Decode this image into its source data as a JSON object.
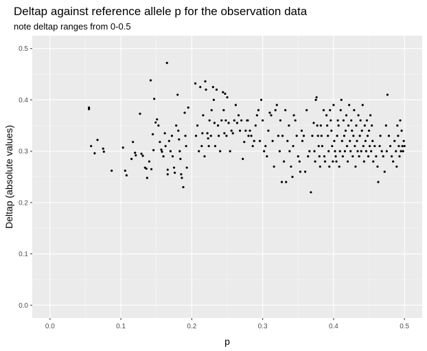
{
  "chart_data": {
    "type": "scatter",
    "title": "Deltap against reference allele p for the observation data",
    "subtitle": "note deltap ranges from 0-0.5",
    "xlabel": "p",
    "ylabel": "Deltap (absolute values)",
    "xlim": [
      -0.025,
      0.525
    ],
    "ylim": [
      -0.025,
      0.525
    ],
    "xticks": [
      "0.0",
      "0.1",
      "0.2",
      "0.3",
      "0.4",
      "0.5"
    ],
    "yticks": [
      "0.0",
      "0.1",
      "0.2",
      "0.3",
      "0.4",
      "0.5"
    ],
    "grid": true,
    "legend": "none",
    "colors": {
      "panel": "#ebebeb",
      "grid_major": "#ffffff",
      "grid_minor": "#f5f5f5",
      "point": "#000000"
    },
    "points": [
      [
        0.055,
        0.385
      ],
      [
        0.055,
        0.382
      ],
      [
        0.058,
        0.31
      ],
      [
        0.063,
        0.296
      ],
      [
        0.067,
        0.322
      ],
      [
        0.075,
        0.305
      ],
      [
        0.076,
        0.299
      ],
      [
        0.087,
        0.262
      ],
      [
        0.103,
        0.307
      ],
      [
        0.106,
        0.262
      ],
      [
        0.108,
        0.253
      ],
      [
        0.115,
        0.285
      ],
      [
        0.117,
        0.318
      ],
      [
        0.12,
        0.297
      ],
      [
        0.121,
        0.292
      ],
      [
        0.127,
        0.373
      ],
      [
        0.129,
        0.295
      ],
      [
        0.131,
        0.291
      ],
      [
        0.134,
        0.268
      ],
      [
        0.136,
        0.266
      ],
      [
        0.137,
        0.248
      ],
      [
        0.14,
        0.28
      ],
      [
        0.142,
        0.438
      ],
      [
        0.143,
        0.265
      ],
      [
        0.145,
        0.333
      ],
      [
        0.146,
        0.302
      ],
      [
        0.147,
        0.402
      ],
      [
        0.149,
        0.356
      ],
      [
        0.151,
        0.362
      ],
      [
        0.153,
        0.35
      ],
      [
        0.155,
        0.318
      ],
      [
        0.157,
        0.303
      ],
      [
        0.158,
        0.299
      ],
      [
        0.16,
        0.29
      ],
      [
        0.162,
        0.335
      ],
      [
        0.163,
        0.31
      ],
      [
        0.165,
        0.472
      ],
      [
        0.166,
        0.264
      ],
      [
        0.166,
        0.255
      ],
      [
        0.168,
        0.32
      ],
      [
        0.17,
        0.3
      ],
      [
        0.172,
        0.33
      ],
      [
        0.173,
        0.29
      ],
      [
        0.175,
        0.268
      ],
      [
        0.176,
        0.258
      ],
      [
        0.178,
        0.35
      ],
      [
        0.18,
        0.41
      ],
      [
        0.181,
        0.34
      ],
      [
        0.182,
        0.323
      ],
      [
        0.183,
        0.3
      ],
      [
        0.184,
        0.285
      ],
      [
        0.185,
        0.255
      ],
      [
        0.186,
        0.248
      ],
      [
        0.188,
        0.23
      ],
      [
        0.19,
        0.375
      ],
      [
        0.191,
        0.33
      ],
      [
        0.192,
        0.31
      ],
      [
        0.193,
        0.268
      ],
      [
        0.195,
        0.385
      ],
      [
        0.205,
        0.432
      ],
      [
        0.206,
        0.33
      ],
      [
        0.208,
        0.35
      ],
      [
        0.21,
        0.3
      ],
      [
        0.212,
        0.425
      ],
      [
        0.214,
        0.31
      ],
      [
        0.215,
        0.335
      ],
      [
        0.216,
        0.37
      ],
      [
        0.218,
        0.29
      ],
      [
        0.219,
        0.436
      ],
      [
        0.22,
        0.42
      ],
      [
        0.222,
        0.335
      ],
      [
        0.223,
        0.325
      ],
      [
        0.224,
        0.31
      ],
      [
        0.225,
        0.36
      ],
      [
        0.227,
        0.33
      ],
      [
        0.228,
        0.38
      ],
      [
        0.23,
        0.425
      ],
      [
        0.231,
        0.4
      ],
      [
        0.232,
        0.355
      ],
      [
        0.233,
        0.31
      ],
      [
        0.235,
        0.42
      ],
      [
        0.237,
        0.35
      ],
      [
        0.238,
        0.33
      ],
      [
        0.24,
        0.3
      ],
      [
        0.242,
        0.36
      ],
      [
        0.244,
        0.415
      ],
      [
        0.245,
        0.38
      ],
      [
        0.246,
        0.335
      ],
      [
        0.247,
        0.412
      ],
      [
        0.248,
        0.36
      ],
      [
        0.249,
        0.33
      ],
      [
        0.25,
        0.405
      ],
      [
        0.252,
        0.355
      ],
      [
        0.254,
        0.3
      ],
      [
        0.256,
        0.34
      ],
      [
        0.258,
        0.335
      ],
      [
        0.26,
        0.36
      ],
      [
        0.262,
        0.39
      ],
      [
        0.264,
        0.355
      ],
      [
        0.266,
        0.37
      ],
      [
        0.268,
        0.34
      ],
      [
        0.27,
        0.36
      ],
      [
        0.272,
        0.285
      ],
      [
        0.274,
        0.318
      ],
      [
        0.276,
        0.34
      ],
      [
        0.278,
        0.36
      ],
      [
        0.279,
        0.36
      ],
      [
        0.28,
        0.33
      ],
      [
        0.282,
        0.34
      ],
      [
        0.284,
        0.33
      ],
      [
        0.286,
        0.31
      ],
      [
        0.288,
        0.32
      ],
      [
        0.29,
        0.35
      ],
      [
        0.292,
        0.37
      ],
      [
        0.294,
        0.38
      ],
      [
        0.296,
        0.32
      ],
      [
        0.298,
        0.4
      ],
      [
        0.3,
        0.36
      ],
      [
        0.302,
        0.3
      ],
      [
        0.304,
        0.31
      ],
      [
        0.306,
        0.29
      ],
      [
        0.308,
        0.34
      ],
      [
        0.31,
        0.375
      ],
      [
        0.312,
        0.37
      ],
      [
        0.314,
        0.32
      ],
      [
        0.316,
        0.27
      ],
      [
        0.318,
        0.38
      ],
      [
        0.32,
        0.39
      ],
      [
        0.322,
        0.33
      ],
      [
        0.324,
        0.3
      ],
      [
        0.325,
        0.36
      ],
      [
        0.327,
        0.24
      ],
      [
        0.328,
        0.33
      ],
      [
        0.33,
        0.28
      ],
      [
        0.332,
        0.38
      ],
      [
        0.333,
        0.24
      ],
      [
        0.335,
        0.32
      ],
      [
        0.337,
        0.35
      ],
      [
        0.338,
        0.3
      ],
      [
        0.34,
        0.27
      ],
      [
        0.342,
        0.25
      ],
      [
        0.343,
        0.31
      ],
      [
        0.344,
        0.37
      ],
      [
        0.346,
        0.36
      ],
      [
        0.348,
        0.33
      ],
      [
        0.35,
        0.29
      ],
      [
        0.352,
        0.28
      ],
      [
        0.353,
        0.26
      ],
      [
        0.355,
        0.34
      ],
      [
        0.356,
        0.32
      ],
      [
        0.358,
        0.33
      ],
      [
        0.36,
        0.26
      ],
      [
        0.362,
        0.38
      ],
      [
        0.364,
        0.29
      ],
      [
        0.366,
        0.3
      ],
      [
        0.368,
        0.22
      ],
      [
        0.37,
        0.33
      ],
      [
        0.372,
        0.355
      ],
      [
        0.373,
        0.3
      ],
      [
        0.374,
        0.28
      ],
      [
        0.375,
        0.4
      ],
      [
        0.376,
        0.405
      ],
      [
        0.377,
        0.35
      ],
      [
        0.378,
        0.33
      ],
      [
        0.379,
        0.31
      ],
      [
        0.38,
        0.29
      ],
      [
        0.381,
        0.27
      ],
      [
        0.382,
        0.35
      ],
      [
        0.383,
        0.33
      ],
      [
        0.384,
        0.31
      ],
      [
        0.386,
        0.38
      ],
      [
        0.387,
        0.29
      ],
      [
        0.388,
        0.28
      ],
      [
        0.39,
        0.37
      ],
      [
        0.391,
        0.35
      ],
      [
        0.392,
        0.33
      ],
      [
        0.393,
        0.3
      ],
      [
        0.394,
        0.27
      ],
      [
        0.395,
        0.38
      ],
      [
        0.396,
        0.36
      ],
      [
        0.397,
        0.34
      ],
      [
        0.398,
        0.31
      ],
      [
        0.399,
        0.28
      ],
      [
        0.4,
        0.39
      ],
      [
        0.401,
        0.32
      ],
      [
        0.402,
        0.3
      ],
      [
        0.403,
        0.29
      ],
      [
        0.404,
        0.28
      ],
      [
        0.405,
        0.33
      ],
      [
        0.406,
        0.36
      ],
      [
        0.407,
        0.35
      ],
      [
        0.408,
        0.27
      ],
      [
        0.409,
        0.3
      ],
      [
        0.41,
        0.38
      ],
      [
        0.411,
        0.4
      ],
      [
        0.412,
        0.32
      ],
      [
        0.413,
        0.29
      ],
      [
        0.414,
        0.36
      ],
      [
        0.415,
        0.33
      ],
      [
        0.416,
        0.3
      ],
      [
        0.417,
        0.34
      ],
      [
        0.418,
        0.37
      ],
      [
        0.419,
        0.31
      ],
      [
        0.42,
        0.28
      ],
      [
        0.421,
        0.35
      ],
      [
        0.422,
        0.39
      ],
      [
        0.423,
        0.32
      ],
      [
        0.424,
        0.3
      ],
      [
        0.425,
        0.36
      ],
      [
        0.426,
        0.34
      ],
      [
        0.427,
        0.29
      ],
      [
        0.428,
        0.33
      ],
      [
        0.429,
        0.38
      ],
      [
        0.43,
        0.31
      ],
      [
        0.431,
        0.27
      ],
      [
        0.432,
        0.35
      ],
      [
        0.433,
        0.32
      ],
      [
        0.434,
        0.3
      ],
      [
        0.435,
        0.37
      ],
      [
        0.436,
        0.29
      ],
      [
        0.437,
        0.33
      ],
      [
        0.438,
        0.36
      ],
      [
        0.439,
        0.3
      ],
      [
        0.44,
        0.34
      ],
      [
        0.441,
        0.39
      ],
      [
        0.442,
        0.31
      ],
      [
        0.443,
        0.28
      ],
      [
        0.444,
        0.35
      ],
      [
        0.445,
        0.32
      ],
      [
        0.446,
        0.3
      ],
      [
        0.447,
        0.36
      ],
      [
        0.448,
        0.33
      ],
      [
        0.449,
        0.29
      ],
      [
        0.45,
        0.34
      ],
      [
        0.451,
        0.31
      ],
      [
        0.452,
        0.37
      ],
      [
        0.453,
        0.3
      ],
      [
        0.454,
        0.35
      ],
      [
        0.455,
        0.32
      ],
      [
        0.456,
        0.28
      ],
      [
        0.458,
        0.31
      ],
      [
        0.46,
        0.29
      ],
      [
        0.462,
        0.27
      ],
      [
        0.463,
        0.24
      ],
      [
        0.465,
        0.31
      ],
      [
        0.466,
        0.33
      ],
      [
        0.468,
        0.3
      ],
      [
        0.47,
        0.29
      ],
      [
        0.472,
        0.26
      ],
      [
        0.474,
        0.35
      ],
      [
        0.475,
        0.3
      ],
      [
        0.476,
        0.41
      ],
      [
        0.478,
        0.33
      ],
      [
        0.48,
        0.31
      ],
      [
        0.482,
        0.29
      ],
      [
        0.484,
        0.28
      ],
      [
        0.486,
        0.32
      ],
      [
        0.488,
        0.3
      ],
      [
        0.489,
        0.27
      ],
      [
        0.49,
        0.35
      ],
      [
        0.491,
        0.33
      ],
      [
        0.492,
        0.31
      ],
      [
        0.493,
        0.29
      ],
      [
        0.494,
        0.36
      ],
      [
        0.495,
        0.3
      ],
      [
        0.496,
        0.34
      ],
      [
        0.497,
        0.31
      ],
      [
        0.498,
        0.3
      ],
      [
        0.499,
        0.32
      ],
      [
        0.5,
        0.31
      ]
    ]
  }
}
